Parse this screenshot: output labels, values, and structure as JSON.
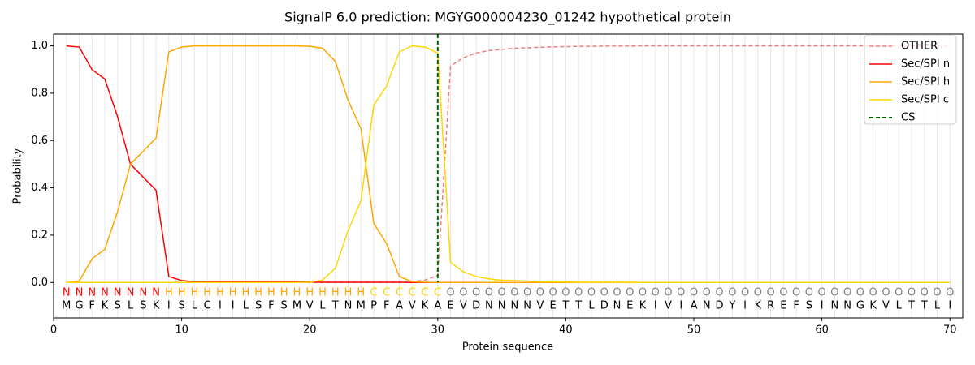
{
  "chart_data": {
    "type": "line",
    "title": "SignalP 6.0 prediction: MGYG000004230_01242 hypothetical protein",
    "x_label": "Protein sequence",
    "y_label": "Probability",
    "xlim": [
      0,
      71
    ],
    "ylim": [
      -0.15,
      1.05
    ],
    "xticks": [
      0,
      10,
      20,
      30,
      40,
      50,
      60,
      70
    ],
    "yticks": [
      {
        "value": 0,
        "label": "0.0"
      },
      {
        "value": 0.2,
        "label": "0.2"
      },
      {
        "value": 0.4,
        "label": "0.4"
      },
      {
        "value": 0.6,
        "label": "0.6"
      },
      {
        "value": 0.8,
        "label": "0.8"
      },
      {
        "value": 1.0,
        "label": "1.0"
      }
    ],
    "x": [
      1,
      2,
      3,
      4,
      5,
      6,
      7,
      8,
      9,
      10,
      11,
      12,
      13,
      14,
      15,
      16,
      17,
      18,
      19,
      20,
      21,
      22,
      23,
      24,
      25,
      26,
      27,
      28,
      29,
      30,
      31,
      32,
      33,
      34,
      35,
      36,
      37,
      38,
      39,
      40,
      41,
      42,
      43,
      44,
      45,
      46,
      47,
      48,
      49,
      50,
      51,
      52,
      53,
      54,
      55,
      56,
      57,
      58,
      59,
      60,
      61,
      62,
      63,
      64,
      65,
      66,
      67,
      68,
      69,
      70
    ],
    "residues": [
      "M",
      "G",
      "F",
      "K",
      "S",
      "L",
      "S",
      "K",
      "I",
      "S",
      "L",
      "C",
      "I",
      "I",
      "L",
      "S",
      "F",
      "S",
      "M",
      "V",
      "L",
      "T",
      "N",
      "M",
      "P",
      "F",
      "A",
      "V",
      "K",
      "A",
      "E",
      "V",
      "D",
      "N",
      "N",
      "N",
      "N",
      "V",
      "E",
      "T",
      "T",
      "L",
      "D",
      "N",
      "E",
      "K",
      "I",
      "V",
      "I",
      "A",
      "N",
      "D",
      "Y",
      "I",
      "K",
      "R",
      "E",
      "F",
      "S",
      "I",
      "N",
      "N",
      "G",
      "K",
      "V",
      "L",
      "T",
      "T",
      "L",
      "I"
    ],
    "region_labels": [
      "N",
      "N",
      "N",
      "N",
      "N",
      "N",
      "N",
      "N",
      "H",
      "H",
      "H",
      "H",
      "H",
      "H",
      "H",
      "H",
      "H",
      "H",
      "H",
      "H",
      "H",
      "H",
      "H",
      "H",
      "C",
      "C",
      "C",
      "C",
      "C",
      "C",
      "O",
      "O",
      "O",
      "O",
      "O",
      "O",
      "O",
      "O",
      "O",
      "O",
      "O",
      "O",
      "O",
      "O",
      "O",
      "O",
      "O",
      "O",
      "O",
      "O",
      "O",
      "O",
      "O",
      "O",
      "O",
      "O",
      "O",
      "O",
      "O",
      "O",
      "O",
      "O",
      "O",
      "O",
      "O",
      "O",
      "O",
      "O",
      "O",
      "O"
    ],
    "region_colors": {
      "N": "#ff0000",
      "H": "#ffa500",
      "C": "#ffd700",
      "O": "#808080"
    },
    "series": [
      {
        "name": "OTHER",
        "color": "#f08080",
        "style": "dashed",
        "values": [
          0,
          0,
          0,
          0,
          0,
          0,
          0,
          0,
          0,
          0,
          0,
          0,
          0,
          0,
          0,
          0,
          0,
          0,
          0,
          0,
          0,
          0,
          0,
          0,
          0,
          0,
          0,
          0.003,
          0.01,
          0.03,
          0.915,
          0.95,
          0.97,
          0.98,
          0.985,
          0.99,
          0.992,
          0.994,
          0.996,
          0.997,
          0.998,
          0.998,
          0.999,
          0.999,
          0.999,
          1,
          1,
          1,
          1,
          1,
          1,
          1,
          1,
          1,
          1,
          1,
          1,
          1,
          1,
          1,
          1,
          1,
          1,
          1,
          1,
          1,
          1,
          1,
          1,
          1
        ]
      },
      {
        "name": "Sec/SPI n",
        "color": "#ff0000",
        "style": "solid",
        "values": [
          1.0,
          0.995,
          0.9,
          0.86,
          0.7,
          0.5,
          0.445,
          0.39,
          0.025,
          0.008,
          0.003,
          0.002,
          0.002,
          0.002,
          0.002,
          0.002,
          0.002,
          0.002,
          0.002,
          0.002,
          0.001,
          0.001,
          0.001,
          0.001,
          0.001,
          0.001,
          0.001,
          0,
          0,
          0,
          0,
          0,
          0,
          0,
          0,
          0,
          0,
          0,
          0,
          0,
          0,
          0,
          0,
          0,
          0,
          0,
          0,
          0,
          0,
          0,
          0,
          0,
          0,
          0,
          0,
          0,
          0,
          0,
          0,
          0,
          0,
          0,
          0,
          0,
          0,
          0,
          0,
          0,
          0,
          0
        ]
      },
      {
        "name": "Sec/SPI h",
        "color": "#ffa500",
        "style": "solid",
        "values": [
          0,
          0.005,
          0.1,
          0.14,
          0.3,
          0.5,
          0.555,
          0.61,
          0.975,
          0.995,
          1,
          1,
          1,
          1,
          1,
          1,
          1,
          1,
          1,
          0.998,
          0.99,
          0.935,
          0.77,
          0.65,
          0.25,
          0.165,
          0.025,
          0.003,
          0.001,
          0,
          0,
          0,
          0,
          0,
          0,
          0,
          0,
          0,
          0,
          0,
          0,
          0,
          0,
          0,
          0,
          0,
          0,
          0,
          0,
          0,
          0,
          0,
          0,
          0,
          0,
          0,
          0,
          0,
          0,
          0,
          0,
          0,
          0,
          0,
          0,
          0,
          0,
          0,
          0,
          0
        ]
      },
      {
        "name": "Sec/SPI c",
        "color": "#ffd700",
        "style": "solid",
        "values": [
          0,
          0,
          0,
          0,
          0,
          0,
          0,
          0,
          0,
          0,
          0,
          0,
          0,
          0,
          0,
          0,
          0,
          0,
          0,
          0.001,
          0.01,
          0.06,
          0.22,
          0.345,
          0.75,
          0.83,
          0.975,
          1.0,
          0.995,
          0.97,
          0.085,
          0.045,
          0.025,
          0.015,
          0.01,
          0.008,
          0.006,
          0.004,
          0.003,
          0.002,
          0.001,
          0.001,
          0.001,
          0.001,
          0.001,
          0,
          0,
          0,
          0,
          0,
          0,
          0,
          0,
          0,
          0,
          0,
          0,
          0,
          0,
          0,
          0,
          0,
          0,
          0,
          0,
          0,
          0,
          0,
          0,
          0
        ]
      }
    ],
    "cs": {
      "name": "CS",
      "color": "#006400",
      "x": 30
    }
  }
}
